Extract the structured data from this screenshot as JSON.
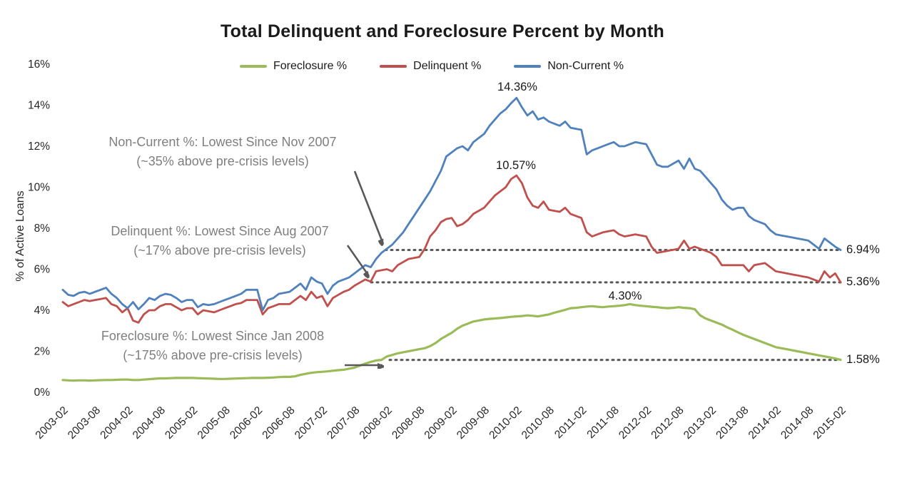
{
  "chart_data": {
    "type": "line",
    "title": "Total Delinquent and Foreclosure Percent by Month",
    "xlabel": "",
    "ylabel": "% of Active Loans",
    "ylim": [
      0,
      16
    ],
    "grid": false,
    "legend_position": "top",
    "y_tick_labels": [
      "0%",
      "2%",
      "4%",
      "6%",
      "8%",
      "10%",
      "12%",
      "14%",
      "16%"
    ],
    "x_start": "2003-02",
    "x_end": "2015-02",
    "x_interval": "monthly",
    "x_tick_labels": [
      "2003-02",
      "2003-08",
      "2004-02",
      "2004-08",
      "2005-02",
      "2005-08",
      "2006-02",
      "2006-08",
      "2007-02",
      "2007-08",
      "2008-02",
      "2008-08",
      "2009-02",
      "2009-08",
      "2010-02",
      "2010-08",
      "2011-02",
      "2011-08",
      "2012-02",
      "2012-08",
      "2013-02",
      "2013-08",
      "2014-02",
      "2014-08",
      "2015-02"
    ],
    "series": [
      {
        "name": "Foreclosure %",
        "color": "#9BBB59",
        "values": [
          0.6,
          0.58,
          0.57,
          0.58,
          0.58,
          0.57,
          0.58,
          0.59,
          0.6,
          0.6,
          0.61,
          0.62,
          0.62,
          0.6,
          0.6,
          0.62,
          0.64,
          0.66,
          0.68,
          0.68,
          0.69,
          0.7,
          0.7,
          0.7,
          0.7,
          0.69,
          0.68,
          0.67,
          0.66,
          0.65,
          0.65,
          0.66,
          0.67,
          0.68,
          0.69,
          0.7,
          0.7,
          0.7,
          0.71,
          0.72,
          0.74,
          0.75,
          0.75,
          0.78,
          0.85,
          0.9,
          0.95,
          0.98,
          1.0,
          1.02,
          1.05,
          1.08,
          1.1,
          1.15,
          1.2,
          1.3,
          1.4,
          1.48,
          1.55,
          1.58,
          1.75,
          1.82,
          1.9,
          1.95,
          2.0,
          2.05,
          2.1,
          2.15,
          2.25,
          2.4,
          2.6,
          2.75,
          2.9,
          3.1,
          3.25,
          3.35,
          3.45,
          3.5,
          3.55,
          3.58,
          3.6,
          3.62,
          3.65,
          3.68,
          3.7,
          3.72,
          3.75,
          3.73,
          3.7,
          3.75,
          3.8,
          3.88,
          3.95,
          4.02,
          4.1,
          4.12,
          4.15,
          4.18,
          4.2,
          4.17,
          4.15,
          4.18,
          4.2,
          4.22,
          4.25,
          4.3,
          4.25,
          4.22,
          4.2,
          4.17,
          4.15,
          4.12,
          4.1,
          4.12,
          4.15,
          4.12,
          4.1,
          4.05,
          3.75,
          3.6,
          3.5,
          3.4,
          3.3,
          3.17,
          3.05,
          2.92,
          2.8,
          2.7,
          2.6,
          2.5,
          2.4,
          2.3,
          2.2,
          2.15,
          2.1,
          2.05,
          2.0,
          1.95,
          1.9,
          1.85,
          1.8,
          1.75,
          1.7,
          1.65,
          1.58
        ]
      },
      {
        "name": "Delinquent %",
        "color": "#C0504D",
        "values": [
          4.4,
          4.2,
          4.3,
          4.4,
          4.5,
          4.45,
          4.5,
          4.55,
          4.6,
          4.3,
          4.2,
          3.9,
          4.1,
          3.5,
          3.4,
          3.8,
          4.0,
          4.0,
          4.2,
          4.3,
          4.3,
          4.15,
          4.0,
          4.1,
          4.1,
          3.8,
          4.0,
          3.95,
          3.9,
          4.0,
          4.1,
          4.2,
          4.3,
          4.35,
          4.5,
          4.5,
          4.5,
          3.8,
          4.1,
          4.2,
          4.3,
          4.3,
          4.3,
          4.5,
          4.7,
          4.5,
          4.9,
          4.6,
          4.7,
          4.2,
          4.6,
          4.75,
          4.9,
          5.0,
          5.2,
          5.35,
          5.5,
          5.4,
          5.9,
          5.95,
          6.0,
          5.9,
          6.2,
          6.35,
          6.5,
          6.55,
          6.6,
          7.0,
          7.6,
          7.9,
          8.3,
          8.45,
          8.5,
          8.1,
          8.2,
          8.4,
          8.7,
          8.85,
          9.0,
          9.3,
          9.6,
          9.8,
          10.0,
          10.4,
          10.57,
          10.2,
          9.5,
          9.1,
          9.0,
          9.3,
          8.9,
          8.85,
          8.8,
          9.0,
          8.7,
          8.6,
          8.5,
          7.8,
          7.6,
          7.7,
          7.8,
          7.85,
          7.9,
          7.7,
          7.6,
          7.65,
          7.7,
          7.65,
          7.6,
          7.1,
          6.8,
          6.85,
          6.9,
          6.95,
          7.0,
          7.4,
          7.0,
          7.1,
          7.0,
          6.9,
          6.8,
          6.6,
          6.2,
          6.2,
          6.2,
          6.2,
          6.2,
          5.9,
          6.2,
          6.25,
          6.3,
          6.1,
          5.9,
          5.85,
          5.8,
          5.75,
          5.7,
          5.65,
          5.6,
          5.5,
          5.4,
          5.9,
          5.6,
          5.8,
          5.36
        ]
      },
      {
        "name": "Non-Current %",
        "color": "#4F81BD",
        "values": [
          5.0,
          4.75,
          4.7,
          4.85,
          4.9,
          4.8,
          4.9,
          5.0,
          5.1,
          4.8,
          4.6,
          4.3,
          4.1,
          4.4,
          4.05,
          4.3,
          4.6,
          4.5,
          4.7,
          4.8,
          4.75,
          4.6,
          4.4,
          4.5,
          4.5,
          4.15,
          4.3,
          4.25,
          4.3,
          4.4,
          4.5,
          4.6,
          4.7,
          4.8,
          5.0,
          5.0,
          5.0,
          4.0,
          4.5,
          4.6,
          4.8,
          4.85,
          4.9,
          5.1,
          5.3,
          5.0,
          5.6,
          5.4,
          5.3,
          4.8,
          5.2,
          5.4,
          5.5,
          5.6,
          5.8,
          6.0,
          6.2,
          6.1,
          6.5,
          6.8,
          7.0,
          7.2,
          7.5,
          7.8,
          8.2,
          8.6,
          9.0,
          9.4,
          9.8,
          10.3,
          10.8,
          11.5,
          11.7,
          11.9,
          12.0,
          11.8,
          12.2,
          12.4,
          12.6,
          13.0,
          13.3,
          13.6,
          13.8,
          14.1,
          14.36,
          13.9,
          13.5,
          13.7,
          13.3,
          13.4,
          13.2,
          13.1,
          13.0,
          13.2,
          12.9,
          12.85,
          12.8,
          11.6,
          11.8,
          11.9,
          12.0,
          12.1,
          12.2,
          12.0,
          12.0,
          12.1,
          12.2,
          12.15,
          12.1,
          11.6,
          11.1,
          11.0,
          11.0,
          11.15,
          11.3,
          10.9,
          11.4,
          10.9,
          10.8,
          10.5,
          10.2,
          9.9,
          9.4,
          9.1,
          8.9,
          9.0,
          9.0,
          8.6,
          8.4,
          8.3,
          8.2,
          7.9,
          7.7,
          7.65,
          7.6,
          7.55,
          7.5,
          7.45,
          7.4,
          7.2,
          7.0,
          7.5,
          7.3,
          7.1,
          6.94
        ]
      }
    ],
    "annotations": [
      {
        "line1": "Non-Current %: Lowest Since Nov 2007",
        "line2": "(~35% above pre-crisis levels)"
      },
      {
        "line1": "Delinquent %: Lowest Since Aug 2007",
        "line2": "(~17% above pre-crisis levels)"
      },
      {
        "line1": "Foreclosure %: Lowest Since Jan 2008",
        "line2": "(~175% above pre-crisis levels)"
      }
    ],
    "peak_labels": [
      {
        "series": "Non-Current %",
        "text": "14.36%"
      },
      {
        "series": "Delinquent %",
        "text": "10.57%"
      },
      {
        "series": "Foreclosure %",
        "text": "4.30%"
      }
    ],
    "end_labels": [
      {
        "series": "Non-Current %",
        "text": "6.94%",
        "value": 6.94
      },
      {
        "series": "Delinquent %",
        "text": "5.36%",
        "value": 5.36
      },
      {
        "series": "Foreclosure %",
        "text": "1.58%",
        "value": 1.58
      }
    ],
    "colors": {
      "foreclosure": "#9BBB59",
      "delinquent": "#C0504D",
      "non_current": "#4F81BD",
      "dotted_reference": "#595959",
      "annotation_text": "#7F7F7F"
    }
  }
}
